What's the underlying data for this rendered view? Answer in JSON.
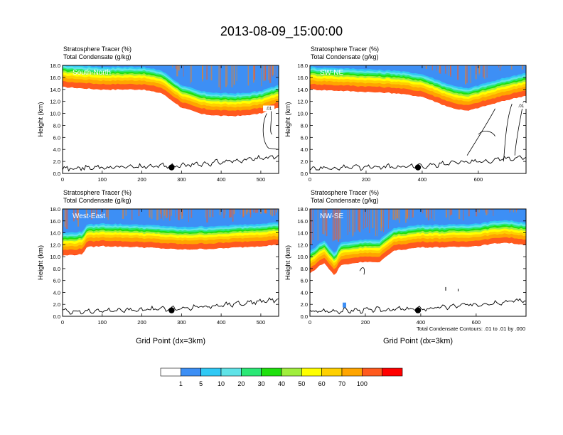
{
  "title": "2013-08-09_15:00:00",
  "footnote": "Total Condensate Contours: .01 to .01 by .000",
  "colorbar": {
    "colors": [
      "#ffffff",
      "#3d8ff5",
      "#30c9f5",
      "#5fe3e7",
      "#2be876",
      "#1fe00e",
      "#a0ee3d",
      "#ffff00",
      "#ffd000",
      "#ffa500",
      "#ff5a1e",
      "#ff0000"
    ],
    "labels": [
      "1",
      "5",
      "10",
      "20",
      "30",
      "40",
      "50",
      "60",
      "70",
      "100"
    ]
  },
  "chart_data": [
    {
      "type": "heatmap",
      "name": "South-North",
      "header": [
        "Stratosphere Tracer   (%)",
        "Total Condensate   (g/kg)"
      ],
      "ylabel": "Height (km)",
      "xlabel": "",
      "xlim": [
        0,
        545
      ],
      "ylim": [
        0,
        18
      ],
      "xticks": [
        "0",
        "100",
        "200",
        "300",
        "400",
        "500"
      ],
      "xtick_values": [
        0,
        100,
        200,
        300,
        400,
        500
      ],
      "yticks": [
        "0.0",
        "2.0",
        "4.0",
        "6.0",
        "8.0",
        "10.0",
        "12.0",
        "14.0",
        "16.0",
        "18.0"
      ],
      "tracer_base_km": [
        [
          0,
          14.4
        ],
        [
          50,
          14.2
        ],
        [
          100,
          14.0
        ],
        [
          150,
          14.0
        ],
        [
          200,
          14.0
        ],
        [
          250,
          13.4
        ],
        [
          300,
          11.0
        ],
        [
          350,
          9.9
        ],
        [
          400,
          9.6
        ],
        [
          450,
          9.6
        ],
        [
          500,
          10.0
        ],
        [
          545,
          11.0
        ]
      ],
      "dot": {
        "x": 275,
        "y": 1.0
      },
      "contour_label": ".01"
    },
    {
      "type": "heatmap",
      "name": "SW-NE",
      "header": [
        "Stratosphere Tracer   (%)",
        "Total Condensate   (g/kg)"
      ],
      "ylabel": "Height (km)",
      "xlabel": "",
      "xlim": [
        0,
        770
      ],
      "ylim": [
        0,
        18
      ],
      "xticks": [
        "0",
        "200",
        "400",
        "600"
      ],
      "xtick_values": [
        0,
        200,
        400,
        600
      ],
      "yticks": [
        "0.0",
        "2.0",
        "4.0",
        "6.0",
        "8.0",
        "10.0",
        "12.0",
        "14.0",
        "16.0",
        "18.0"
      ],
      "tracer_base_km": [
        [
          0,
          14.0
        ],
        [
          100,
          13.8
        ],
        [
          200,
          13.6
        ],
        [
          300,
          13.4
        ],
        [
          400,
          12.8
        ],
        [
          500,
          11.0
        ],
        [
          560,
          10.4
        ],
        [
          620,
          11.2
        ],
        [
          700,
          12.2
        ],
        [
          770,
          13.0
        ]
      ],
      "dot": {
        "x": 385,
        "y": 1.0
      },
      "contour_label": ".01"
    },
    {
      "type": "heatmap",
      "name": "West-East",
      "header": [
        "Stratosphere Tracer   (%)",
        "Total Condensate   (g/kg)"
      ],
      "ylabel": "Height (km)",
      "xlabel": "Grid Point (dx=3km)",
      "xlim": [
        0,
        545
      ],
      "ylim": [
        0,
        18
      ],
      "xticks": [
        "0",
        "100",
        "200",
        "300",
        "400",
        "500"
      ],
      "xtick_values": [
        0,
        100,
        200,
        300,
        400,
        500
      ],
      "yticks": [
        "0.0",
        "2.0",
        "4.0",
        "6.0",
        "8.0",
        "10.0",
        "12.0",
        "14.0",
        "16.0",
        "18.0"
      ],
      "tracer_base_km": [
        [
          0,
          10.2
        ],
        [
          50,
          10.4
        ],
        [
          60,
          11.6
        ],
        [
          100,
          11.8
        ],
        [
          200,
          11.6
        ],
        [
          300,
          11.2
        ],
        [
          400,
          11.4
        ],
        [
          500,
          11.8
        ],
        [
          545,
          12.0
        ]
      ],
      "dot": {
        "x": 275,
        "y": 1.0
      },
      "contour_label": ""
    },
    {
      "type": "heatmap",
      "name": "NW-SE",
      "header": [
        "Stratosphere Tracer   (%)",
        "Total Condensate   (g/kg)"
      ],
      "ylabel": "Height (km)",
      "xlabel": "Grid Point (dx=3km)",
      "xlim": [
        0,
        780
      ],
      "ylim": [
        0,
        18
      ],
      "xticks": [
        "0",
        "200",
        "400",
        "600"
      ],
      "xtick_values": [
        0,
        200,
        400,
        600
      ],
      "yticks": [
        "0.0",
        "2.0",
        "4.0",
        "6.0",
        "8.0",
        "10.0",
        "12.0",
        "14.0",
        "16.0",
        "18.0"
      ],
      "tracer_base_km": [
        [
          0,
          7.2
        ],
        [
          50,
          9.0
        ],
        [
          90,
          6.8
        ],
        [
          110,
          8.6
        ],
        [
          200,
          9.2
        ],
        [
          250,
          9.0
        ],
        [
          300,
          11.0
        ],
        [
          400,
          11.6
        ],
        [
          500,
          11.6
        ],
        [
          600,
          11.8
        ],
        [
          700,
          12.4
        ],
        [
          780,
          12.0
        ]
      ],
      "dot": {
        "x": 390,
        "y": 1.0
      },
      "contour_label": ""
    }
  ]
}
